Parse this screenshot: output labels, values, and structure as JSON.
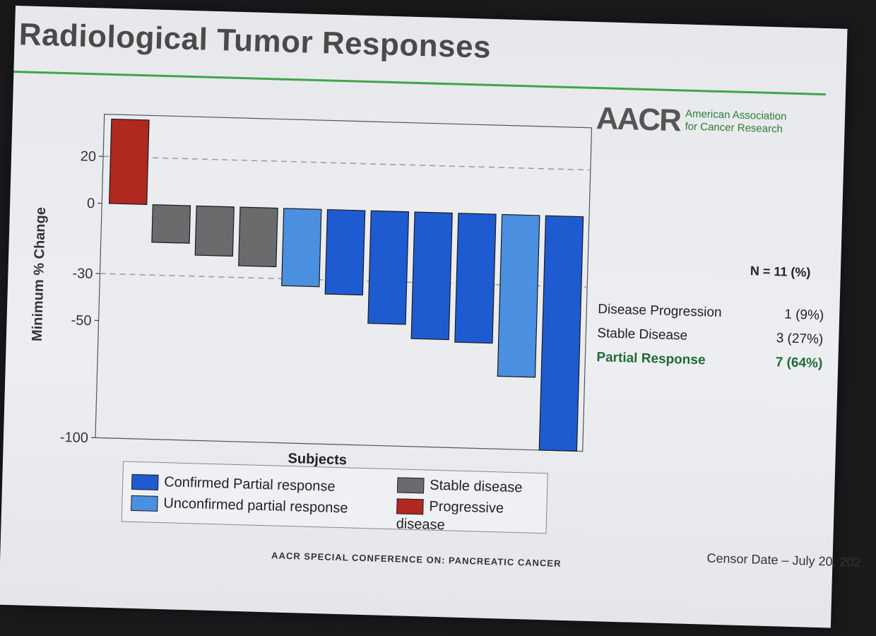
{
  "slide": {
    "title": "Radiological Tumor Responses",
    "logo": {
      "mark": "AACR",
      "line1": "American Association",
      "line2": "for Cancer Research"
    },
    "footer": "AACR SPECIAL CONFERENCE ON: PANCREATIC CANCER",
    "censor_date": "Censor Date – July 20, 202",
    "stats": {
      "n_label": "N = 11 (%)",
      "rows": [
        {
          "label": "Disease Progression",
          "value": "1  (9%)"
        },
        {
          "label": "Stable Disease",
          "value": "3 (27%)"
        },
        {
          "label": "Partial Response",
          "value": "7 (64%)"
        }
      ]
    }
  },
  "chart_data": {
    "type": "bar",
    "title": "Radiological Tumor Responses",
    "xlabel": "Subjects",
    "ylabel": "Minimum % Change",
    "ylim": [
      -100,
      38
    ],
    "yticks": [
      20,
      0,
      -30,
      -50,
      -100
    ],
    "ytick_labels": [
      "20",
      "0",
      "-30",
      "-50",
      "-100"
    ],
    "reference_lines": [
      20,
      -30
    ],
    "colors": {
      "Confirmed Partial response": "#1f5bd0",
      "Unconfirmed partial response": "#4b8fe0",
      "Stable disease": "#6b6b6e",
      "Progressive disease": "#b0281f"
    },
    "bars": [
      {
        "subject": 1,
        "value": 36,
        "category": "Progressive disease"
      },
      {
        "subject": 2,
        "value": -16,
        "category": "Stable disease"
      },
      {
        "subject": 3,
        "value": -21,
        "category": "Stable disease"
      },
      {
        "subject": 4,
        "value": -25,
        "category": "Stable disease"
      },
      {
        "subject": 5,
        "value": -33,
        "category": "Unconfirmed partial response"
      },
      {
        "subject": 6,
        "value": -36,
        "category": "Confirmed Partial response"
      },
      {
        "subject": 7,
        "value": -48,
        "category": "Confirmed Partial response"
      },
      {
        "subject": 8,
        "value": -54,
        "category": "Confirmed Partial response"
      },
      {
        "subject": 9,
        "value": -55,
        "category": "Confirmed Partial response"
      },
      {
        "subject": 10,
        "value": -69,
        "category": "Unconfirmed partial response"
      },
      {
        "subject": 11,
        "value": -100,
        "category": "Confirmed Partial response"
      }
    ],
    "legend": [
      "Confirmed Partial response",
      "Unconfirmed partial response",
      "Stable disease",
      "Progressive disease"
    ]
  }
}
